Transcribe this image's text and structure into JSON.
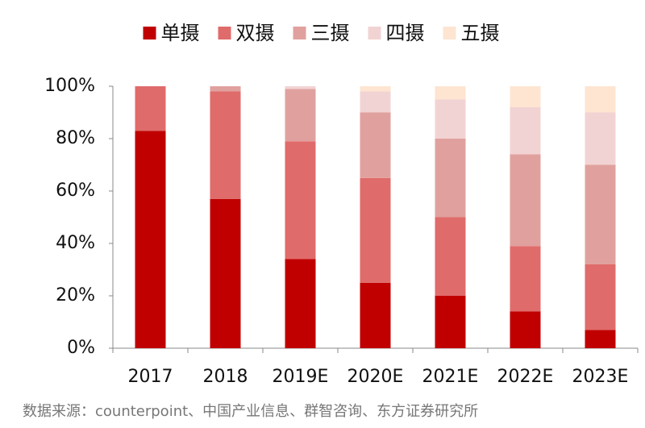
{
  "chart_data": {
    "type": "stacked_bar",
    "categories": [
      "2017",
      "2018",
      "2019E",
      "2020E",
      "2021E",
      "2022E",
      "2023E"
    ],
    "series": [
      {
        "name": "单摄",
        "color": "#c00000",
        "values": [
          83,
          57,
          34,
          25,
          20,
          14,
          7
        ]
      },
      {
        "name": "双摄",
        "color": "#e06b6b",
        "values": [
          17,
          41,
          45,
          40,
          30,
          25,
          25
        ]
      },
      {
        "name": "三摄",
        "color": "#e0a19e",
        "values": [
          0,
          2,
          20,
          25,
          30,
          35,
          38
        ]
      },
      {
        "name": "四摄",
        "color": "#f2d3d3",
        "values": [
          0,
          0,
          1,
          8,
          15,
          18,
          20
        ]
      },
      {
        "name": "五摄",
        "color": "#fde5d2",
        "values": [
          0,
          0,
          0,
          2,
          5,
          8,
          10
        ]
      }
    ],
    "ylim": [
      0,
      100
    ],
    "yticks": [
      {
        "value": 0,
        "label": "0%"
      },
      {
        "value": 20,
        "label": "20%"
      },
      {
        "value": 40,
        "label": "40%"
      },
      {
        "value": 60,
        "label": "60%"
      },
      {
        "value": 80,
        "label": "80%"
      },
      {
        "value": 100,
        "label": "100%"
      }
    ],
    "legend": "top",
    "source": "数据来源：counterpoint、中国产业信息、群智咨询、东方证券研究所"
  }
}
